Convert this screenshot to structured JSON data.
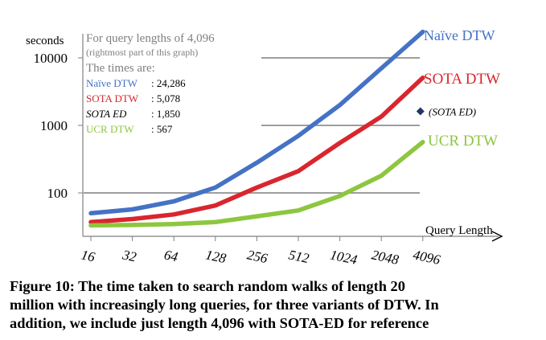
{
  "chart_data": {
    "type": "line",
    "ylabel": "seconds",
    "y_scale": "log",
    "yticks": [
      100,
      1000,
      10000
    ],
    "ytick_labels": [
      "100",
      "1000",
      "10000"
    ],
    "xlabel": "Query Length",
    "categories": [
      "16",
      "32",
      "64",
      "128",
      "256",
      "512",
      "1024",
      "2048",
      "4096"
    ],
    "grid": "horizontal lines at 100, 1000 and 10000",
    "series": [
      {
        "name": "Naïve DTW",
        "color": "#4472C4",
        "values": [
          50,
          57,
          75,
          120,
          280,
          700,
          2000,
          7000,
          24286
        ]
      },
      {
        "name": "SOTA DTW",
        "color": "#D9262E",
        "values": [
          37,
          41,
          48,
          65,
          120,
          210,
          550,
          1350,
          5078
        ]
      },
      {
        "name": "UCR DTW",
        "color": "#8DC63F",
        "values": [
          33,
          33.5,
          34.5,
          37,
          45,
          55,
          90,
          180,
          567
        ]
      }
    ],
    "points": [
      {
        "name": "(SOTA ED)",
        "x": "4096",
        "y": 1850,
        "color": "#1F3864",
        "marker": "diamond"
      }
    ],
    "legend_placement": "right, labels at line ends",
    "annotation": {
      "line1": "For query lengths of 4,096",
      "line2": "(rightmost part of this graph)",
      "line3": "The times are:",
      "rows": [
        {
          "label": "Naïve DTW",
          "value": ": 24,286",
          "color": "#4472C4",
          "italic": false
        },
        {
          "label": "SOTA DTW",
          "value": ": 5,078",
          "color": "#D9262E",
          "italic": false
        },
        {
          "label": "SOTA ED",
          "value": ": 1,850",
          "color": "#000000",
          "italic": true
        },
        {
          "label": "UCR DTW",
          "value": ": 567",
          "color": "#8DC63F",
          "italic": false
        }
      ]
    }
  },
  "caption": {
    "line1": "Figure 10: The time taken to search random walks of length 20",
    "line2": "million with increasingly long queries, for three variants of DTW. In",
    "line3": "addition, we include just length 4,096 with SOTA-ED for reference"
  }
}
